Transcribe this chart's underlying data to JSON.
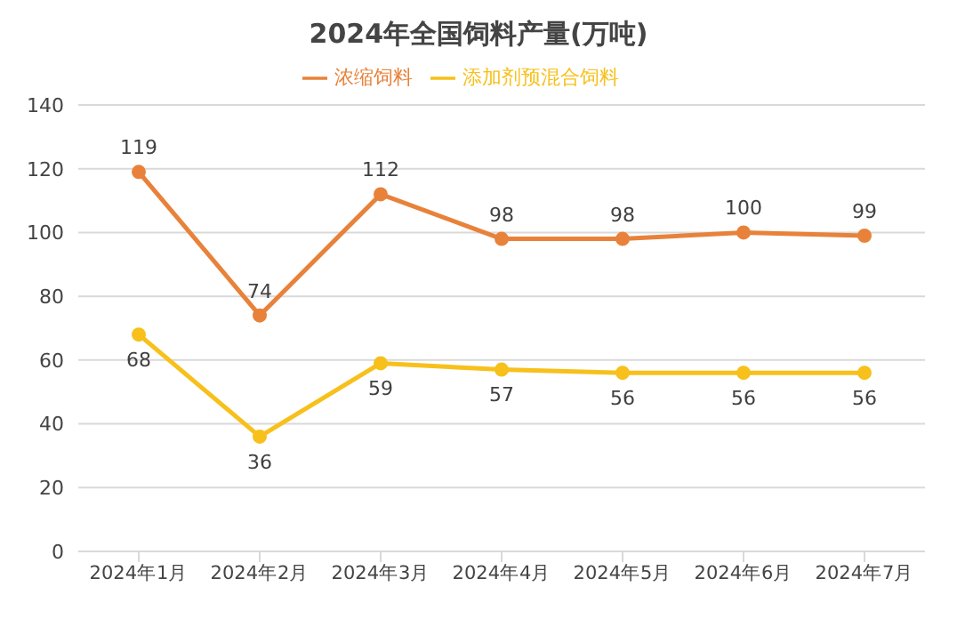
{
  "chart_data": {
    "type": "line",
    "title": "2024年全国饲料产量(万吨)",
    "categories": [
      "2024年1月",
      "2024年2月",
      "2024年3月",
      "2024年4月",
      "2024年5月",
      "2024年6月",
      "2024年7月"
    ],
    "series": [
      {
        "name": "浓缩饲料",
        "color": "#e8823a",
        "values": [
          119,
          74,
          112,
          98,
          98,
          100,
          99
        ]
      },
      {
        "name": "添加剂预混合饲料",
        "color": "#f7c01b",
        "values": [
          68,
          36,
          59,
          57,
          56,
          56,
          56
        ]
      }
    ],
    "ylim": [
      0,
      140
    ],
    "yticks": [
      0,
      20,
      40,
      60,
      80,
      100,
      120,
      140
    ],
    "grid": "y",
    "legend": "top",
    "marker": "circle",
    "line_style": "solid",
    "data_labels": true
  }
}
